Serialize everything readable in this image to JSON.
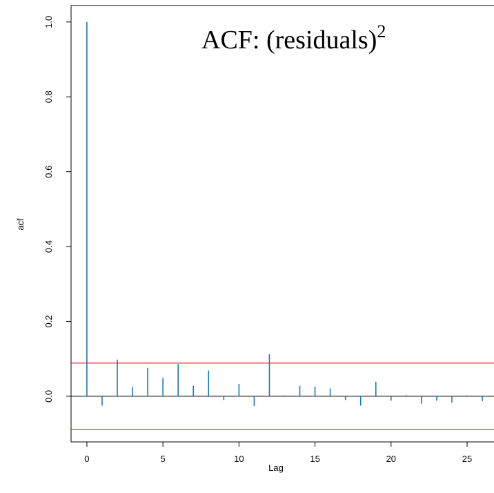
{
  "chart_data": {
    "type": "acf",
    "title": "ACF: (residuals)",
    "title_superscript": "2",
    "title_color": "#ff3300",
    "xlabel": "Lag",
    "ylabel": "acf",
    "x": [
      0,
      1,
      2,
      3,
      4,
      5,
      6,
      7,
      8,
      9,
      10,
      11,
      12,
      13,
      14,
      15,
      16,
      17,
      18,
      19,
      20,
      21,
      22,
      23,
      24,
      25,
      26
    ],
    "values": [
      1.0,
      -0.025,
      0.098,
      0.024,
      0.076,
      0.049,
      0.086,
      0.028,
      0.069,
      -0.01,
      0.033,
      -0.026,
      0.112,
      0.002,
      0.028,
      0.026,
      0.021,
      -0.01,
      -0.025,
      0.039,
      -0.012,
      0.003,
      -0.02,
      -0.012,
      -0.017,
      0.002,
      -0.013
    ],
    "color": "#1f77b4",
    "conf_limits": [
      -0.0886,
      0.0886
    ],
    "conf_color": "#e00000",
    "xlim": [
      -1.04,
      27.04
    ],
    "ylim": [
      -0.122,
      1.044
    ],
    "xticks": [
      0,
      5,
      10,
      15,
      20,
      25
    ],
    "yticks": [
      {
        "value": 0,
        "label": "0.0"
      },
      {
        "value": 0.2,
        "label": "0.2"
      },
      {
        "value": 0.4,
        "label": "0.4"
      },
      {
        "value": 0.6,
        "label": "0.6"
      },
      {
        "value": 0.8,
        "label": "0.8"
      },
      {
        "value": 1,
        "label": "1.0"
      }
    ]
  }
}
